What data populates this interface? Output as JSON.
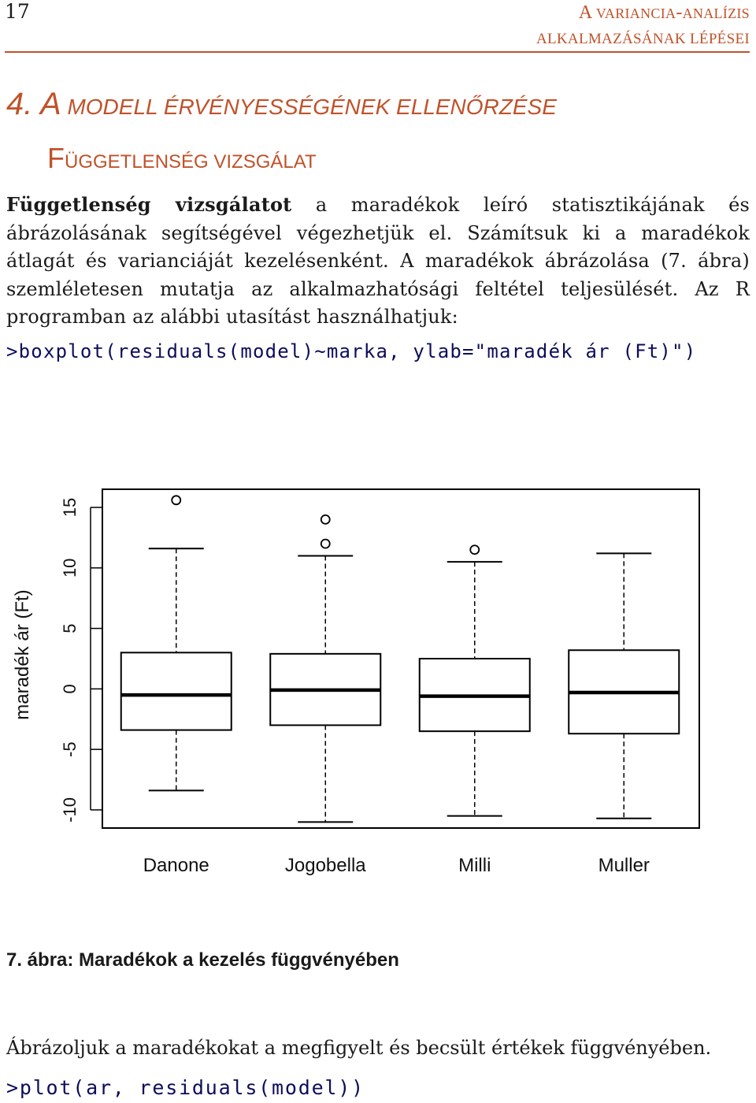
{
  "page": {
    "number": "17",
    "running_header": {
      "line1_big": "A",
      "line1_small": " VARIANCIA",
      "line1_dash": "-",
      "line1_small2": "ANALÍZIS",
      "line2": "ALKALMAZÁSÁNAK LÉPÉSEI"
    }
  },
  "section": {
    "number_cap": "4. A",
    "title_rest": " MODELL ÉRVÉNYESSÉGÉNEK ELLENŐRZÉSE"
  },
  "subsection": {
    "cap": "F",
    "rest": "ÜGGETLENSÉG VIZSGÁLAT"
  },
  "paragraph": {
    "strong": "Függetlenség vizsgálatot",
    "text": " a maradékok leíró statisztikájának és ábrázolásának segítségével végezhetjük el. Számítsuk ki a maradékok átlagát és varianciáját kezelésenként. A maradékok ábrázolása (7. ábra) szemléletesen mutatja az alkalmazhatósági feltétel teljesülését. Az R programban az alábbi utasítást használhatjuk:"
  },
  "code": {
    "boxplot": ">boxplot(residuals(model)~marka, ylab=\"maradék ár (Ft)\")",
    "plot": ">plot(ar, residuals(model))"
  },
  "chart_data": {
    "type": "boxplot",
    "ylabel": "maradék ár (Ft)",
    "ylim": [
      -11.5,
      16.5
    ],
    "yticks": [
      -10,
      -5,
      0,
      5,
      10,
      15
    ],
    "ytick_labels": [
      "-10",
      "-5",
      "0",
      "5",
      "10",
      "15"
    ],
    "categories": [
      "Danone",
      "Jogobella",
      "Milli",
      "Muller"
    ],
    "boxes": [
      {
        "name": "Danone",
        "lower_whisker": -8.4,
        "q1": -3.4,
        "median": -0.5,
        "q3": 3.0,
        "upper_whisker": 11.6,
        "outliers": [
          15.6
        ]
      },
      {
        "name": "Jogobella",
        "lower_whisker": -11.0,
        "q1": -3.0,
        "median": -0.1,
        "q3": 2.9,
        "upper_whisker": 11.0,
        "outliers": [
          12.0,
          14.0
        ]
      },
      {
        "name": "Milli",
        "lower_whisker": -10.5,
        "q1": -3.5,
        "median": -0.6,
        "q3": 2.5,
        "upper_whisker": 10.5,
        "outliers": [
          11.5
        ]
      },
      {
        "name": "Muller",
        "lower_whisker": -10.7,
        "q1": -3.7,
        "median": -0.3,
        "q3": 3.2,
        "upper_whisker": 11.2,
        "outliers": []
      }
    ],
    "grid": false,
    "legend": "none"
  },
  "caption": "7. ábra: Maradékok a kezelés függvényében",
  "closing": "Ábrázoljuk a maradékokat a megfigyelt és becsült értékek függvényében."
}
